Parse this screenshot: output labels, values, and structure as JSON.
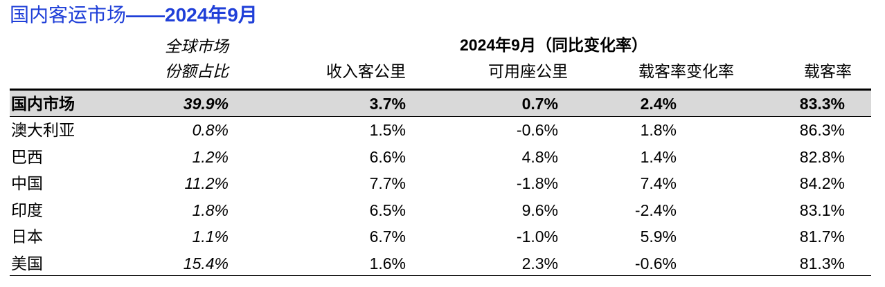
{
  "title": {
    "prefix": "国内客运市场",
    "dash": "——",
    "suffix": "2024年9月"
  },
  "header": {
    "share_line1": "全球市场",
    "share_line2": "份额占比",
    "group_label": "2024年9月（同比变化率）",
    "columns": [
      "收入客公里",
      "可用座公里",
      "载客率变化率",
      "载客率"
    ]
  },
  "rows": [
    {
      "name": "国内市场",
      "share": "39.9%",
      "rpk": "3.7%",
      "ask": "0.7%",
      "lf_change": "2.4%",
      "lf": "83.3%"
    },
    {
      "name": "澳大利亚",
      "share": "0.8%",
      "rpk": "1.5%",
      "ask": "-0.6%",
      "lf_change": "1.8%",
      "lf": "86.3%"
    },
    {
      "name": "巴西",
      "share": "1.2%",
      "rpk": "6.6%",
      "ask": "4.8%",
      "lf_change": "1.4%",
      "lf": "82.8%"
    },
    {
      "name": "中国",
      "share": "11.2%",
      "rpk": "7.7%",
      "ask": "-1.8%",
      "lf_change": "7.4%",
      "lf": "84.2%"
    },
    {
      "name": "印度",
      "share": "1.8%",
      "rpk": "6.5%",
      "ask": "9.6%",
      "lf_change": "-2.4%",
      "lf": "83.1%"
    },
    {
      "name": "日本",
      "share": "1.1%",
      "rpk": "6.7%",
      "ask": "-1.0%",
      "lf_change": "5.9%",
      "lf": "81.7%"
    },
    {
      "name": "美国",
      "share": "15.4%",
      "rpk": "1.6%",
      "ask": "2.3%",
      "lf_change": "-0.6%",
      "lf": "81.3%"
    }
  ]
}
